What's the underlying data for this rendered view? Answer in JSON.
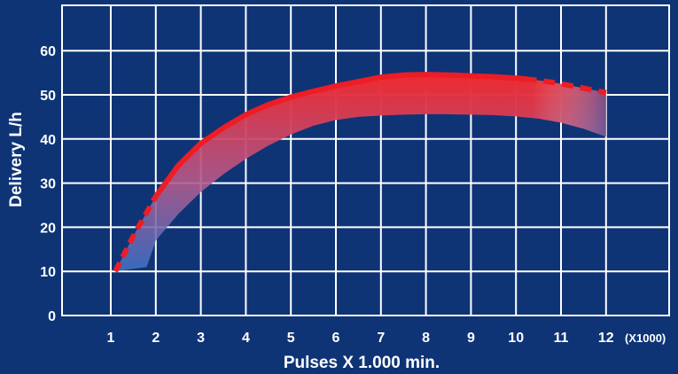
{
  "chart_data": {
    "type": "area",
    "xlabel": "Pulses X 1.000 min.",
    "ylabel": "Delivery L/h",
    "x_unit_note": "(X1000)",
    "xticks": [
      "1",
      "2",
      "3",
      "4",
      "5",
      "6",
      "7",
      "8",
      "9",
      "10",
      "11",
      "12"
    ],
    "yticks": [
      "0",
      "10",
      "20",
      "30",
      "40",
      "50",
      "60"
    ],
    "xlim": [
      0,
      12.7
    ],
    "ylim": [
      0,
      70
    ],
    "grid": true,
    "colors": {
      "background": "#0e3476",
      "grid": "#ffffff",
      "curve": "#ee1c25",
      "band_fade": "#3f74c8"
    },
    "series": [
      {
        "x": [
          1.1,
          1.5,
          2.0,
          2.5,
          3.0,
          3.5,
          4.0,
          4.5,
          5.0,
          5.5,
          6.0,
          6.5,
          7.0,
          7.5,
          8.0,
          8.5,
          9.0,
          9.5,
          10.0,
          10.5,
          11.0,
          11.5,
          12.0
        ],
        "y": [
          10,
          18,
          27,
          34,
          39,
          42.5,
          45.5,
          47.8,
          49.5,
          50.8,
          52,
          53,
          54,
          54.5,
          54.6,
          54.5,
          54.3,
          54.1,
          53.8,
          53.3,
          52.5,
          51.5,
          50.5
        ],
        "solid_range": [
          2.0,
          10.2
        ]
      },
      {
        "x": [
          1.1,
          1.8,
          2.0,
          2.5,
          3.0,
          3.5,
          4.0,
          4.5,
          5.0,
          5.5,
          6.0,
          6.5,
          7.0,
          7.5,
          8.0,
          8.5,
          9.0,
          9.5,
          10.0,
          10.5,
          11.0,
          11.5,
          12.0
        ],
        "y": [
          10,
          11,
          17,
          23,
          28,
          32,
          35.5,
          38.5,
          41,
          43,
          44.3,
          45,
          45.3,
          45.5,
          45.6,
          45.6,
          45.5,
          45.4,
          45.1,
          44.6,
          43.7,
          42.3,
          40.5
        ]
      }
    ]
  }
}
